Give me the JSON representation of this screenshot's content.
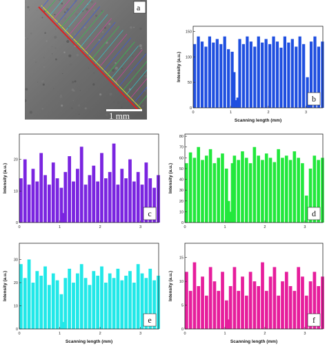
{
  "chart_data": [
    {
      "panel": "a",
      "type": "image",
      "scale_bar_text": "1 mm"
    },
    {
      "panel": "b",
      "type": "bar",
      "color": "#1f4fe0",
      "xlabel": "Scanning length (mm)",
      "ylabel": "Intensity (a.u.)",
      "xlim": [
        0,
        3.45
      ],
      "ylim": [
        0,
        160
      ],
      "xticks": [
        "0",
        "1",
        "2",
        "3"
      ],
      "yticks": [
        "0",
        "50",
        "100",
        "150"
      ],
      "x": [
        0.0,
        0.1,
        0.2,
        0.3,
        0.4,
        0.5,
        0.6,
        0.7,
        0.8,
        0.9,
        1.0,
        1.05,
        1.1,
        1.15,
        1.2,
        1.3,
        1.4,
        1.5,
        1.6,
        1.7,
        1.8,
        1.9,
        2.0,
        2.1,
        2.2,
        2.3,
        2.4,
        2.5,
        2.6,
        2.7,
        2.8,
        2.9,
        3.0,
        3.05,
        3.1,
        3.2,
        3.3,
        3.4
      ],
      "values": [
        125,
        140,
        130,
        120,
        140,
        128,
        135,
        125,
        140,
        115,
        110,
        70,
        15,
        20,
        135,
        125,
        140,
        130,
        120,
        140,
        128,
        135,
        125,
        140,
        130,
        118,
        140,
        128,
        135,
        120,
        140,
        125,
        60,
        25,
        130,
        140,
        120,
        130
      ]
    },
    {
      "panel": "c",
      "type": "bar",
      "color": "#7a25e0",
      "xlabel": "",
      "ylabel": "Intensity (a.u.)",
      "xlim": [
        0,
        3.45
      ],
      "ylim": [
        0,
        28
      ],
      "xticks": [
        "0",
        "1",
        "2",
        "3"
      ],
      "yticks": [
        "0",
        "10",
        "20"
      ],
      "x": [
        0.0,
        0.1,
        0.2,
        0.3,
        0.4,
        0.5,
        0.6,
        0.7,
        0.8,
        0.9,
        1.0,
        1.05,
        1.1,
        1.2,
        1.3,
        1.4,
        1.5,
        1.6,
        1.7,
        1.8,
        1.9,
        2.0,
        2.1,
        2.2,
        2.3,
        2.4,
        2.5,
        2.6,
        2.7,
        2.8,
        2.9,
        3.0,
        3.1,
        3.2,
        3.3,
        3.4
      ],
      "values": [
        14,
        20,
        12,
        17,
        13,
        22,
        15,
        12,
        19,
        14,
        11,
        3,
        16,
        21,
        13,
        17,
        24,
        12,
        15,
        18,
        13,
        22,
        14,
        16,
        25,
        12,
        17,
        14,
        20,
        13,
        16,
        12,
        19,
        14,
        11,
        15
      ]
    },
    {
      "panel": "d",
      "type": "bar",
      "color": "#22e83c",
      "xlabel": "",
      "ylabel": "Intensity (a.u.)",
      "xlim": [
        0,
        3.45
      ],
      "ylim": [
        0,
        82
      ],
      "xticks": [
        "0",
        "1",
        "2",
        "3"
      ],
      "yticks": [
        "0",
        "10",
        "20",
        "30",
        "40",
        "50",
        "60",
        "70",
        "80"
      ],
      "x": [
        0.0,
        0.1,
        0.2,
        0.3,
        0.4,
        0.5,
        0.6,
        0.7,
        0.8,
        0.9,
        1.0,
        1.05,
        1.1,
        1.15,
        1.2,
        1.3,
        1.4,
        1.5,
        1.6,
        1.7,
        1.8,
        1.9,
        2.0,
        2.1,
        2.2,
        2.3,
        2.4,
        2.5,
        2.6,
        2.7,
        2.8,
        2.9,
        3.0,
        3.1,
        3.2,
        3.3,
        3.4
      ],
      "values": [
        55,
        65,
        60,
        70,
        58,
        62,
        68,
        55,
        60,
        64,
        50,
        20,
        10,
        55,
        62,
        58,
        66,
        60,
        55,
        70,
        62,
        58,
        64,
        60,
        56,
        68,
        60,
        62,
        58,
        66,
        60,
        55,
        25,
        50,
        62,
        58,
        60
      ]
    },
    {
      "panel": "e",
      "type": "bar",
      "color": "#22e8e8",
      "xlabel": "Scanning length (mm)",
      "ylabel": "Intensity (a.u.)",
      "xlim": [
        0,
        3.45
      ],
      "ylim": [
        0,
        37
      ],
      "xticks": [
        "0",
        "1",
        "2",
        "3"
      ],
      "yticks": [
        "0",
        "10",
        "20",
        "30"
      ],
      "x": [
        0.0,
        0.1,
        0.2,
        0.3,
        0.4,
        0.5,
        0.6,
        0.7,
        0.8,
        0.9,
        1.0,
        1.05,
        1.1,
        1.2,
        1.3,
        1.4,
        1.5,
        1.6,
        1.7,
        1.8,
        1.9,
        2.0,
        2.1,
        2.2,
        2.3,
        2.4,
        2.5,
        2.6,
        2.7,
        2.8,
        2.9,
        3.0,
        3.1,
        3.2,
        3.3,
        3.4
      ],
      "values": [
        28,
        22,
        30,
        20,
        25,
        23,
        27,
        19,
        24,
        21,
        15,
        3,
        22,
        26,
        20,
        24,
        28,
        22,
        19,
        25,
        23,
        27,
        20,
        24,
        22,
        26,
        21,
        23,
        25,
        20,
        28,
        24,
        22,
        26,
        21,
        23
      ]
    },
    {
      "panel": "f",
      "type": "bar",
      "color": "#e61e9c",
      "xlabel": "Scanning length (mm)",
      "ylabel": "Intensity (a.u.)",
      "xlim": [
        0,
        3.45
      ],
      "ylim": [
        0,
        18
      ],
      "xticks": [
        "0",
        "1",
        "2",
        "3"
      ],
      "yticks": [
        "0",
        "5",
        "10",
        "15"
      ],
      "x": [
        0.0,
        0.1,
        0.2,
        0.3,
        0.4,
        0.5,
        0.6,
        0.7,
        0.8,
        0.9,
        1.0,
        1.05,
        1.1,
        1.2,
        1.3,
        1.4,
        1.5,
        1.6,
        1.7,
        1.8,
        1.9,
        2.0,
        2.1,
        2.2,
        2.3,
        2.4,
        2.5,
        2.6,
        2.7,
        2.8,
        2.9,
        3.0,
        3.1,
        3.2,
        3.3,
        3.4
      ],
      "values": [
        12,
        8,
        14,
        9,
        11,
        7,
        13,
        10,
        8,
        12,
        6,
        2,
        9,
        13,
        8,
        11,
        7,
        12,
        10,
        9,
        14,
        8,
        11,
        13,
        7,
        10,
        12,
        9,
        8,
        13,
        11,
        7,
        10,
        12,
        9,
        11
      ]
    }
  ]
}
